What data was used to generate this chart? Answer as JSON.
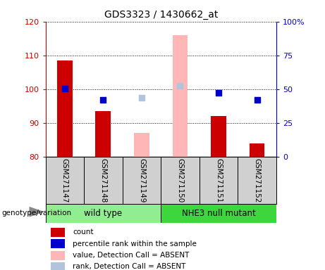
{
  "title": "GDS3323 / 1430662_at",
  "samples": [
    "GSM271147",
    "GSM271148",
    "GSM271149",
    "GSM271150",
    "GSM271151",
    "GSM271152"
  ],
  "red_bars": [
    108.5,
    93.5,
    null,
    null,
    92.0,
    84.0
  ],
  "pink_bars": [
    null,
    null,
    87.0,
    116.0,
    null,
    null
  ],
  "blue_dots_left": [
    100.2,
    96.8,
    null,
    null,
    99.0,
    96.8
  ],
  "light_blue_dots_left": [
    null,
    null,
    97.5,
    101.0,
    null,
    null
  ],
  "ylim_left": [
    80,
    120
  ],
  "ylim_right": [
    0,
    100
  ],
  "left_ticks": [
    80,
    90,
    100,
    110,
    120
  ],
  "right_ticks": [
    0,
    25,
    50,
    75,
    100
  ],
  "right_tick_labels": [
    "0",
    "25",
    "50",
    "75",
    "100%"
  ],
  "group1_label": "wild type",
  "group2_label": "NHE3 null mutant",
  "group1_color": "#90ee90",
  "group2_color": "#3dd63d",
  "group1_indices": [
    0,
    1,
    2
  ],
  "group2_indices": [
    3,
    4,
    5
  ],
  "left_axis_color": "#cc0000",
  "right_axis_color": "#0000cc",
  "bar_width": 0.4,
  "dot_size": 40,
  "legend_labels": [
    "count",
    "percentile rank within the sample",
    "value, Detection Call = ABSENT",
    "rank, Detection Call = ABSENT"
  ],
  "legend_colors": [
    "#cc0000",
    "#0000cc",
    "#ffb6b6",
    "#b0c4de"
  ],
  "genotype_label": "genotype/variation"
}
